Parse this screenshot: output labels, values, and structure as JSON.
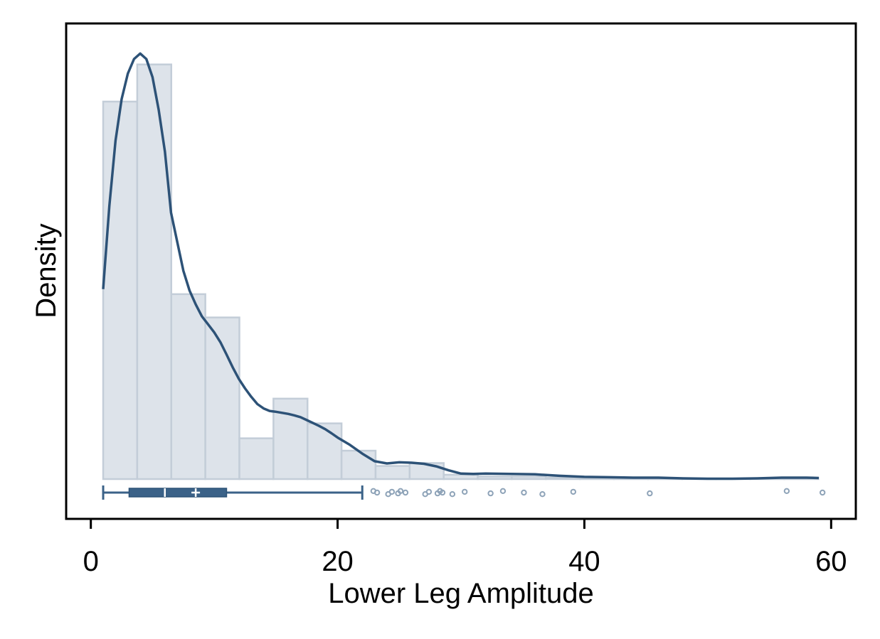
{
  "chart_data": {
    "type": "bar",
    "xlabel": "Lower Leg Amplitude",
    "ylabel": "Density",
    "xlim": [
      -2,
      62
    ],
    "ylim": [
      0,
      0.1195
    ],
    "x_ticks": [
      0,
      20,
      40,
      60
    ],
    "y_tick_labels_shown": false,
    "grid": false,
    "histogram": {
      "bin_edges": [
        1.0,
        3.76,
        6.52,
        9.28,
        12.04,
        14.8,
        17.56,
        20.32,
        23.08,
        25.84,
        28.6,
        31.36,
        34.12,
        36.88,
        39.64,
        42.4,
        45.16,
        47.92,
        50.68,
        53.44,
        56.2,
        58.96
      ],
      "densities": [
        0.1037,
        0.1139,
        0.0508,
        0.0444,
        0.0112,
        0.0221,
        0.0153,
        0.0078,
        0.0036,
        0.0044,
        0.0012,
        0.0007,
        0.0007,
        0.0004,
        0.0002,
        0.0002,
        0.0002,
        0.0001,
        0.0001,
        0.0001,
        0.0003
      ],
      "fill_color": "#dde3ea",
      "edge_color": "#c3cdd8"
    },
    "kde": {
      "color": "#2d5277",
      "x": [
        1.0,
        1.5,
        2.0,
        2.5,
        3.0,
        3.5,
        4.0,
        4.5,
        5.0,
        5.5,
        6.0,
        6.5,
        7.0,
        7.5,
        8.0,
        8.5,
        9.0,
        9.5,
        10.0,
        10.5,
        11.0,
        11.5,
        12.0,
        12.5,
        13.0,
        13.5,
        14.0,
        14.5,
        15.0,
        15.5,
        16.0,
        16.5,
        17.0,
        17.5,
        18.0,
        18.5,
        19.0,
        19.5,
        20.0,
        21.0,
        22.0,
        23.0,
        24.0,
        25.0,
        26.0,
        27.0,
        28.0,
        29.0,
        30.0,
        31.0,
        32.0,
        34.0,
        36.0,
        38.0,
        40.0,
        42.0,
        44.0,
        46.0,
        48.0,
        50.0,
        52.0,
        54.0,
        56.0,
        58.0,
        59.0
      ],
      "y": [
        0.0522,
        0.075,
        0.093,
        0.1044,
        0.1114,
        0.1154,
        0.1169,
        0.1154,
        0.1104,
        0.1014,
        0.09,
        0.0732,
        0.0652,
        0.0572,
        0.0518,
        0.048,
        0.0447,
        0.0425,
        0.0403,
        0.0376,
        0.0342,
        0.0307,
        0.0275,
        0.0249,
        0.0226,
        0.0206,
        0.0194,
        0.0187,
        0.0185,
        0.0182,
        0.0179,
        0.0175,
        0.017,
        0.0162,
        0.0154,
        0.0146,
        0.0137,
        0.0126,
        0.0114,
        0.0094,
        0.007,
        0.0049,
        0.0043,
        0.0046,
        0.0045,
        0.0042,
        0.0035,
        0.0024,
        0.0015,
        0.0014,
        0.0015,
        0.0014,
        0.0013,
        0.0009,
        0.0006,
        0.0005,
        0.0004,
        0.0004,
        0.0002,
        0.0001,
        0.0001,
        0.0002,
        0.0004,
        0.0004,
        0.0003
      ]
    },
    "boxplot": {
      "color": "#3b6288",
      "whisker_low": 1.0,
      "q1": 3.1,
      "median": 6.0,
      "q3": 11.0,
      "whisker_high": 22.0,
      "mean": 8.5,
      "outliers": [
        22.9,
        23.2,
        24.1,
        24.4,
        24.9,
        25.1,
        25.5,
        27.1,
        27.4,
        28.1,
        28.3,
        28.5,
        29.3,
        30.3,
        32.4,
        33.4,
        35.1,
        36.6,
        39.1,
        45.3,
        56.4,
        59.3
      ]
    }
  }
}
